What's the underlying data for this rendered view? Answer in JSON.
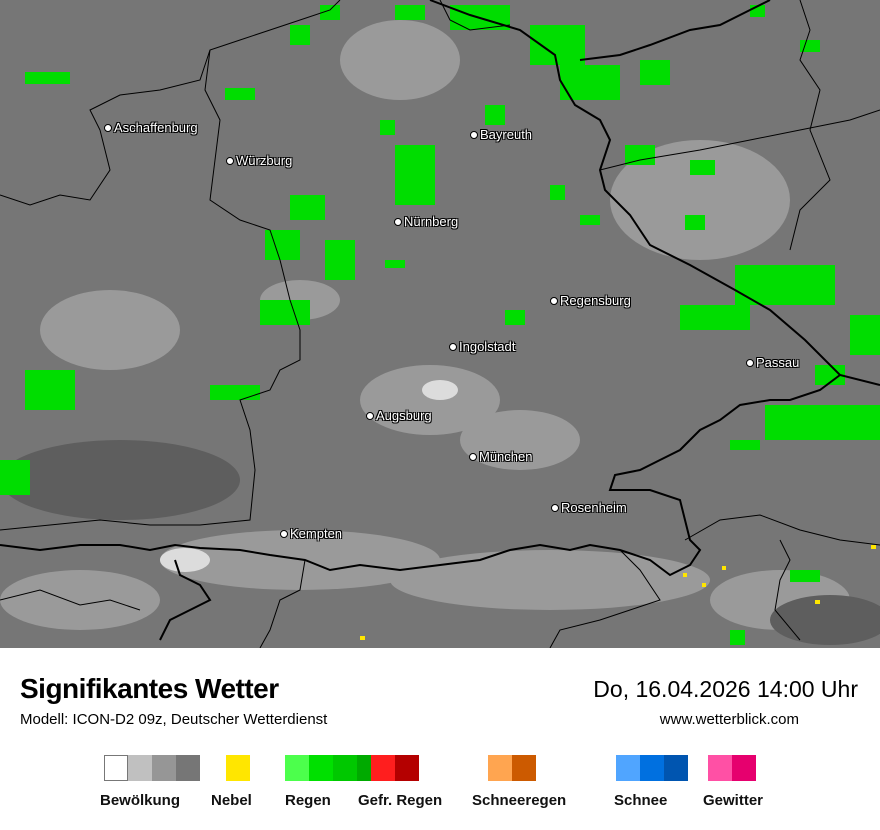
{
  "header": {
    "title": "Signifikantes Wetter",
    "subtitle": "Modell: ICON-D2 09z, Deutscher Wetterdienst",
    "datetime": "Do, 16.04.2026 14:00 Uhr",
    "website": "www.wetterblick.com"
  },
  "cities": [
    {
      "name": "Aschaffenburg"
    },
    {
      "name": "Würzburg"
    },
    {
      "name": "Bayreuth"
    },
    {
      "name": "Nürnberg"
    },
    {
      "name": "Regensburg"
    },
    {
      "name": "Ingolstadt"
    },
    {
      "name": "Passau"
    },
    {
      "name": "Augsburg"
    },
    {
      "name": "München"
    },
    {
      "name": "Rosenheim"
    },
    {
      "name": "Kempten"
    }
  ],
  "legend": [
    {
      "label": "Bewölkung",
      "colors": [
        "#ffffff",
        "#c0c0c0",
        "#969696",
        "#767676"
      ]
    },
    {
      "label": "Nebel",
      "colors": [
        "#ffe600"
      ]
    },
    {
      "label": "Regen",
      "colors": [
        "#4cff4c",
        "#00e000",
        "#00c800",
        "#00aa00"
      ]
    },
    {
      "label": "Gefr. Regen",
      "colors": [
        "#ff1e1e",
        "#b40000"
      ]
    },
    {
      "label": "Schneeregen",
      "colors": [
        "#ffa550",
        "#cc5a00"
      ]
    },
    {
      "label": "Schnee",
      "colors": [
        "#50a5ff",
        "#0070e0",
        "#0055b0"
      ]
    },
    {
      "label": "Gewitter",
      "colors": [
        "#ff50a5",
        "#e6006e"
      ]
    }
  ],
  "colors": {
    "rain": "#00dd00",
    "cloud_dark": "#767676",
    "cloud_light": "#9a9a9a",
    "border": "#000000"
  }
}
